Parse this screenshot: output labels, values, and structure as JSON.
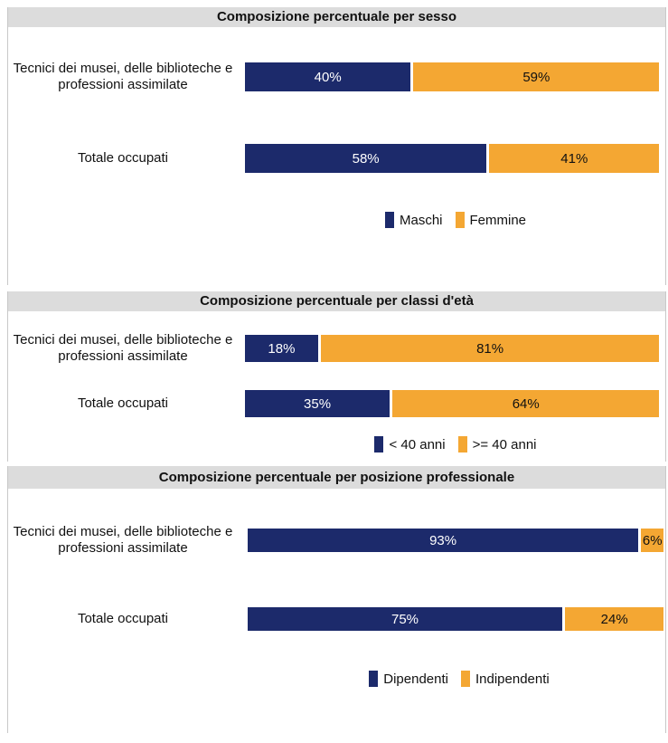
{
  "chart_data": [
    {
      "type": "bar",
      "title": "Composizione percentuale per sesso",
      "categories": [
        "Tecnici dei musei, delle biblioteche e professioni assimilate",
        "Totale occupati"
      ],
      "xlim": [
        0,
        100
      ],
      "series": [
        {
          "name": "Maschi",
          "color": "#1c2a6b",
          "values": [
            40,
            58
          ],
          "value_labels": [
            "40%",
            "58%"
          ]
        },
        {
          "name": "Femmine",
          "color": "#f4a733",
          "values": [
            59,
            41
          ],
          "value_labels": [
            "59%",
            "41%"
          ]
        }
      ]
    },
    {
      "type": "bar",
      "title": "Composizione percentuale per classi d'età",
      "categories": [
        "Tecnici dei musei, delle biblioteche e professioni assimilate",
        "Totale occupati"
      ],
      "xlim": [
        0,
        100
      ],
      "series": [
        {
          "name": "< 40 anni",
          "color": "#1c2a6b",
          "values": [
            18,
            35
          ],
          "value_labels": [
            "18%",
            "35%"
          ]
        },
        {
          "name": ">= 40 anni",
          "color": "#f4a733",
          "values": [
            81,
            64
          ],
          "value_labels": [
            "81%",
            "64%"
          ]
        }
      ]
    },
    {
      "type": "bar",
      "title": "Composizione percentuale per posizione professionale",
      "categories": [
        "Tecnici dei musei, delle biblioteche e professioni assimilate",
        "Totale occupati"
      ],
      "xlim": [
        0,
        100
      ],
      "series": [
        {
          "name": "Dipendenti",
          "color": "#1c2a6b",
          "values": [
            93,
            75
          ],
          "value_labels": [
            "93%",
            "75%"
          ]
        },
        {
          "name": "Indipendenti",
          "color": "#f4a733",
          "values": [
            6,
            24
          ],
          "value_labels": [
            "6%",
            "24%"
          ]
        }
      ]
    }
  ]
}
